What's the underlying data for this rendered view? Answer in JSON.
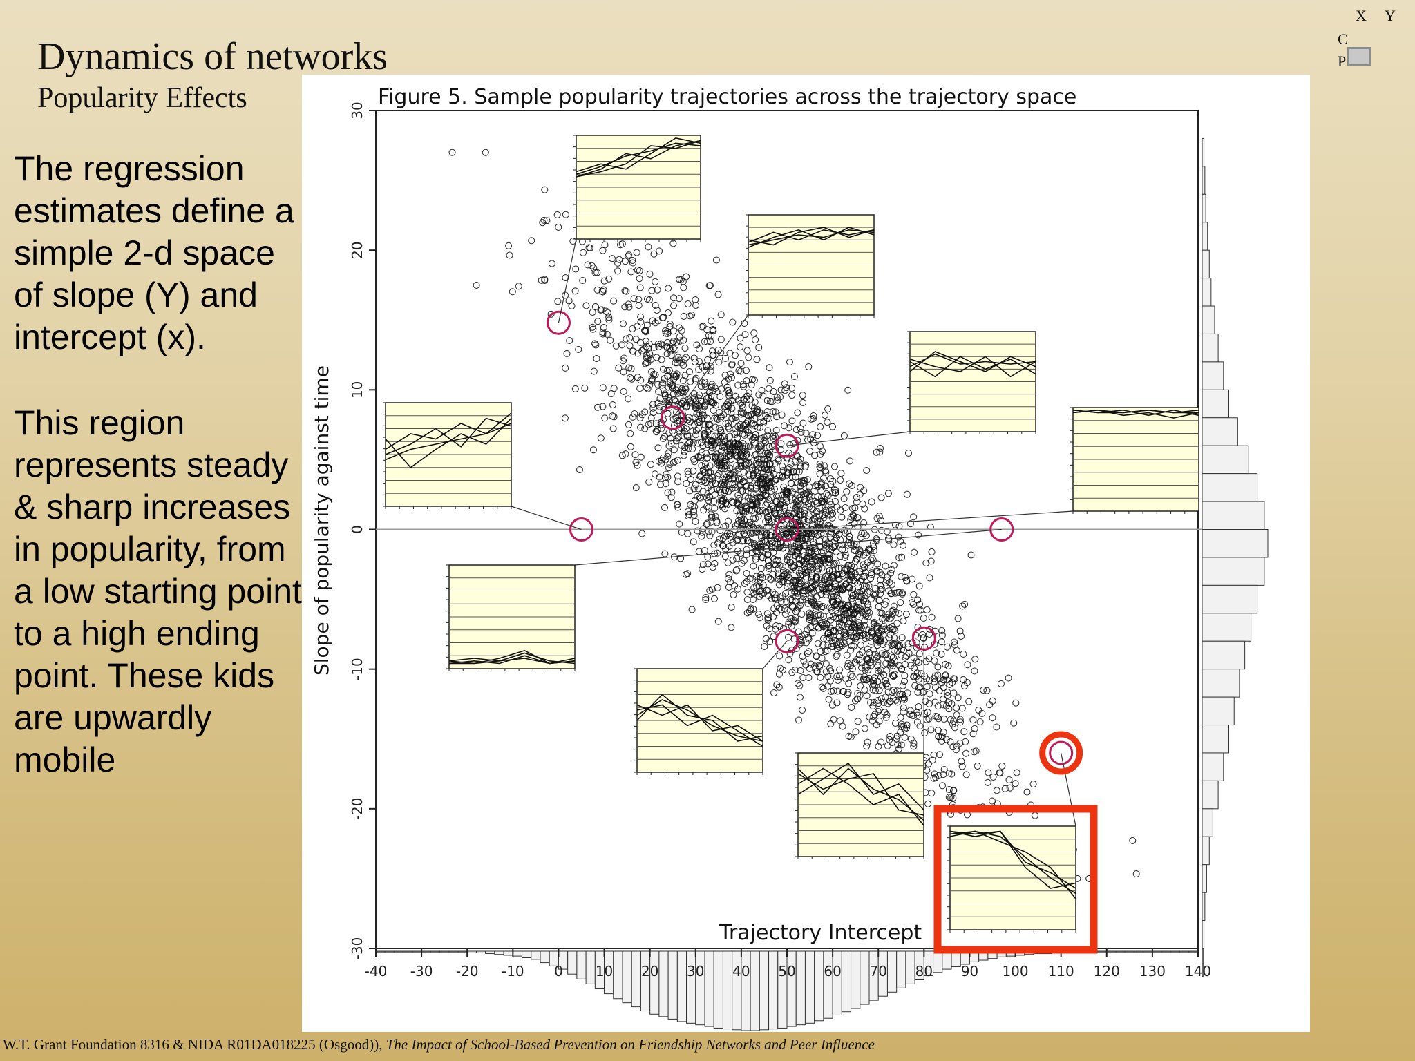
{
  "slide": {
    "title": "Dynamics of networks",
    "subtitle": "Popularity Effects",
    "paragraph1": "The regression estimates define a simple 2-d space of slope (Y) and intercept (x).",
    "paragraph2": "This region represents steady & sharp increases in popularity, from a low starting point to a high ending point.  These kids are upwardly mobile",
    "corner_labels": {
      "x": "X",
      "y": "Y",
      "c": "C",
      "p": "P"
    },
    "footer_main": "W.T. Grant Foundation 8316 & NIDA R01DA018225 (Osgood)), ",
    "footer_italic": "The Impact of School-Based Prevention on Friendship Networks and Peer Influence"
  },
  "colors": {
    "highlight": "#ee3311",
    "marker_circle": "#c0185a",
    "inset_fill": "#ffffdc",
    "points": "#111111"
  },
  "chart_data": {
    "type": "scatter",
    "title": "Figure 5. Sample popularity trajectories across the trajectory space",
    "xlabel": "Trajectory Intercept",
    "ylabel": "Slope of popularity against time",
    "xlim": [
      -40,
      140
    ],
    "ylim": [
      -30,
      30
    ],
    "x_ticks": [
      -40,
      -30,
      -20,
      -10,
      0,
      10,
      20,
      30,
      40,
      50,
      60,
      70,
      80,
      90,
      100,
      110,
      120,
      130,
      140
    ],
    "y_ticks": [
      30,
      20,
      10,
      0,
      -10,
      -20,
      -30
    ],
    "reference_line_y": 0,
    "point_cloud": {
      "description_trend": "negative linear relation between intercept and slope",
      "approx_points": 3000,
      "x_center": 50,
      "x_sd": 20,
      "slope_of_trend": -0.37,
      "trend_intercept_at_x0": 18.5,
      "residual_sd": 4.5
    },
    "marked_samples": [
      {
        "x": 0,
        "y": 14.8
      },
      {
        "x": 25,
        "y": 8
      },
      {
        "x": 50,
        "y": 6
      },
      {
        "x": 5,
        "y": 0
      },
      {
        "x": 50,
        "y": 0
      },
      {
        "x": 97,
        "y": 0
      },
      {
        "x": 50,
        "y": -8
      },
      {
        "x": 80,
        "y": -7.8
      },
      {
        "x": 110,
        "y": -16
      }
    ],
    "highlighted_sample_index": 8,
    "x_histogram_bins": [
      -40,
      -38,
      -36,
      -34,
      -32,
      -30,
      -28,
      -26,
      -24,
      -22,
      -20,
      -18,
      -16,
      -14,
      -12,
      -10,
      -8,
      -6,
      -4,
      -2,
      0,
      2,
      4,
      6,
      8,
      10,
      12,
      14,
      16,
      18,
      20,
      22,
      24,
      26,
      28,
      30,
      32,
      34,
      36,
      38,
      40,
      42,
      44,
      46,
      48,
      50,
      52,
      54,
      56,
      58,
      60,
      62,
      64,
      66,
      68,
      70,
      72,
      74,
      76,
      78,
      80,
      82,
      84,
      86,
      88,
      90,
      92,
      94,
      96,
      98,
      100,
      102,
      104,
      106,
      108,
      110,
      112,
      114,
      116,
      118,
      120,
      122,
      124,
      126,
      128,
      130,
      132,
      134,
      136,
      138
    ],
    "x_histogram_counts": [
      1,
      1,
      1,
      1,
      1,
      1,
      1,
      1,
      1,
      1,
      2,
      2,
      3,
      4,
      5,
      6,
      8,
      10,
      14,
      18,
      22,
      28,
      34,
      40,
      46,
      52,
      58,
      63,
      68,
      73,
      77,
      80,
      83,
      86,
      88,
      90,
      92,
      94,
      95,
      96,
      97,
      97,
      96,
      95,
      94,
      92,
      90,
      88,
      85,
      82,
      78,
      74,
      70,
      65,
      60,
      55,
      50,
      45,
      40,
      35,
      30,
      26,
      22,
      19,
      16,
      13,
      11,
      9,
      7,
      6,
      5,
      4,
      3,
      3,
      2,
      2,
      1,
      1,
      1,
      1,
      1,
      1,
      1,
      1,
      1,
      1,
      1,
      1,
      1,
      1
    ],
    "y_histogram_bins": [
      28,
      26,
      24,
      22,
      20,
      18,
      16,
      14,
      12,
      10,
      8,
      6,
      4,
      2,
      0,
      -2,
      -4,
      -6,
      -8,
      -10,
      -12,
      -14,
      -16,
      -18,
      -20,
      -22,
      -24,
      -26,
      -28,
      -30
    ],
    "y_histogram_counts": [
      2,
      3,
      4,
      6,
      8,
      10,
      14,
      18,
      24,
      30,
      40,
      52,
      62,
      70,
      74,
      70,
      62,
      55,
      48,
      42,
      36,
      30,
      24,
      18,
      12,
      8,
      5,
      3,
      2,
      1
    ],
    "insets": [
      {
        "ylim": [
          -10,
          30
        ],
        "series": [
          [
            14,
            16,
            19,
            26,
            25,
            28
          ],
          [
            15,
            18,
            22,
            24,
            27,
            26
          ],
          [
            16,
            19,
            17,
            23,
            29,
            27
          ],
          [
            14,
            17,
            23,
            21,
            26,
            28
          ]
        ]
      },
      {
        "ylim": [
          -10,
          30
        ],
        "series": [
          [
            18,
            20,
            22,
            21,
            24,
            23
          ],
          [
            19,
            23,
            20,
            24,
            22,
            24
          ],
          [
            17,
            21,
            24,
            20,
            25,
            22
          ],
          [
            20,
            18,
            23,
            25,
            21,
            24
          ]
        ]
      },
      {
        "ylim": [
          -10,
          30
        ],
        "series": [
          [
            16,
            21,
            17,
            18,
            17,
            18
          ],
          [
            18,
            12,
            20,
            15,
            19,
            13
          ],
          [
            14,
            22,
            18,
            14,
            20,
            16
          ],
          [
            19,
            16,
            14,
            20,
            12,
            18
          ]
        ]
      },
      {
        "ylim": [
          -10,
          30
        ],
        "series": [
          [
            16,
            5,
            12,
            18,
            14,
            24
          ],
          [
            10,
            14,
            20,
            13,
            24,
            21
          ],
          [
            12,
            18,
            16,
            22,
            18,
            26
          ],
          [
            8,
            12,
            14,
            16,
            18,
            22
          ]
        ]
      },
      {
        "ylim": [
          -10,
          30
        ],
        "series": [
          [
            28,
            29,
            28,
            29,
            28,
            28
          ],
          [
            29,
            28,
            29,
            27,
            29,
            27
          ],
          [
            28,
            29,
            27,
            28,
            26,
            28
          ],
          [
            29,
            28,
            28,
            29,
            28,
            29
          ]
        ]
      },
      {
        "ylim": [
          -10,
          30
        ],
        "series": [
          [
            -7,
            -8,
            -6,
            -3,
            -8,
            -6
          ],
          [
            -8,
            -7,
            -8,
            -5,
            -8,
            -7
          ],
          [
            -7,
            -6,
            -7,
            -4,
            -7,
            -8
          ],
          [
            -8,
            -8,
            -7,
            -6,
            -8,
            -7
          ]
        ]
      },
      {
        "ylim": [
          -10,
          30
        ],
        "series": [
          [
            12,
            18,
            14,
            8,
            4,
            2
          ],
          [
            14,
            16,
            8,
            12,
            6,
            0
          ],
          [
            10,
            20,
            12,
            10,
            2,
            4
          ],
          [
            16,
            12,
            16,
            6,
            8,
            2
          ]
        ]
      },
      {
        "ylim": [
          -10,
          30
        ],
        "series": [
          [
            24,
            14,
            24,
            16,
            12,
            4
          ],
          [
            18,
            24,
            18,
            10,
            14,
            2
          ],
          [
            22,
            16,
            20,
            22,
            8,
            6
          ],
          [
            14,
            20,
            26,
            14,
            18,
            8
          ]
        ]
      },
      {
        "ylim": [
          -10,
          30
        ],
        "series": [
          [
            27,
            28,
            26,
            18,
            10,
            4
          ],
          [
            28,
            27,
            28,
            14,
            6,
            8
          ],
          [
            26,
            28,
            24,
            20,
            14,
            2
          ],
          [
            28,
            26,
            28,
            16,
            12,
            6
          ]
        ]
      }
    ]
  }
}
